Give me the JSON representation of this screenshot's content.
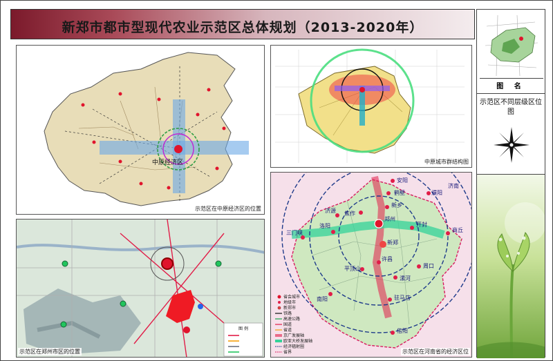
{
  "title": "新郑市都市型现代农业示范区总体规划（2013-2020年）",
  "side": {
    "tuming_label": "图 名",
    "tuming_value": "示范区不同层级区位图"
  },
  "panels": {
    "china": {
      "caption": "示范区在中原经济区的位置",
      "labels": {
        "zone": "中原经济区"
      }
    },
    "zhongyuan": {
      "caption": "中原城市群结构图"
    },
    "zhengzhou": {
      "caption": "示范区在郑州市区的位置",
      "legend_title": "图 例"
    },
    "henan": {
      "caption": "示范区在河南省的经济区位",
      "cities": [
        "安阳",
        "鹤壁",
        "濮阳",
        "新乡",
        "焦作",
        "济源",
        "洛阳",
        "三门峡",
        "郑州",
        "开封",
        "商丘",
        "新郑",
        "许昌",
        "平顶山",
        "漯河",
        "周口",
        "南阳",
        "驻马店",
        "信阳",
        "济南"
      ],
      "legend": [
        "省会城市",
        "地级市",
        "新郑市",
        "铁路",
        "高速公路",
        "国道",
        "省道",
        "京广发展轴",
        "欧亚大桥发展轴",
        "经济辐射圈",
        "省界"
      ]
    }
  },
  "colors": {
    "title_dark": "#7b1a2b",
    "accent_red": "#e0142c",
    "green_axis": "#3cb371",
    "blue_ring": "#2b3aa8"
  }
}
